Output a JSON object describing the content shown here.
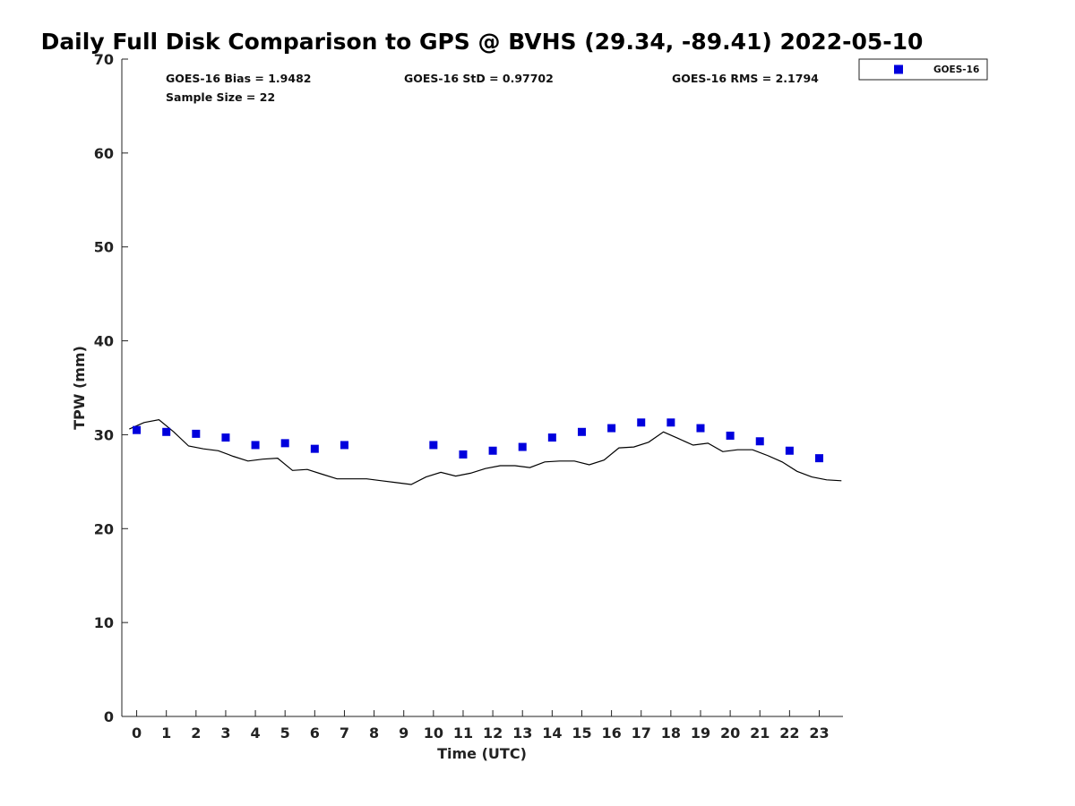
{
  "chart_data": {
    "type": "scatter",
    "title": "Daily Full Disk Comparison to GPS @ BVHS (29.34, -89.41) 2022-05-10",
    "xlabel": "Time (UTC)",
    "ylabel": "TPW (mm)",
    "xlim": [
      -0.5,
      23.8
    ],
    "ylim": [
      0,
      70
    ],
    "xticks": [
      0,
      1,
      2,
      3,
      4,
      5,
      6,
      7,
      8,
      9,
      10,
      11,
      12,
      13,
      14,
      15,
      16,
      17,
      18,
      19,
      20,
      21,
      22,
      23
    ],
    "xtick_labels": [
      "0",
      "1",
      "2",
      "3",
      "4",
      "5",
      "6",
      "7",
      "8",
      "9",
      "10",
      "11",
      "12",
      "13",
      "14",
      "15",
      "16",
      "17",
      "18",
      "19",
      "20",
      "21",
      "22",
      "23"
    ],
    "yticks": [
      0,
      10,
      20,
      30,
      40,
      50,
      60,
      70
    ],
    "ytick_labels": [
      "0",
      "10",
      "20",
      "30",
      "40",
      "50",
      "60",
      "70"
    ],
    "grid": false,
    "legend_position": "outside top-right",
    "stats": {
      "bias": "GOES-16 Bias = 1.9482",
      "std": "GOES-16 StD = 0.97702",
      "rms": "GOES-16 RMS = 2.1794",
      "sample_size": "Sample Size = 22"
    },
    "series": [
      {
        "name": "GOES-16",
        "type": "scatter",
        "marker": "square",
        "color": "#0000dd",
        "x": [
          0,
          1,
          2,
          3,
          4,
          5,
          6,
          7,
          10,
          11,
          12,
          13,
          14,
          15,
          16,
          17,
          18,
          19,
          20,
          21,
          22,
          23
        ],
        "y": [
          30.5,
          30.3,
          30.1,
          29.7,
          28.9,
          29.1,
          28.5,
          28.9,
          28.9,
          27.9,
          28.3,
          28.7,
          29.7,
          30.3,
          30.7,
          31.3,
          31.3,
          30.7,
          29.9,
          29.3,
          28.3,
          27.5
        ]
      },
      {
        "type": "line",
        "color": "#000000",
        "x": [
          -0.25,
          0.25,
          0.75,
          1.25,
          1.75,
          2.25,
          2.75,
          3.25,
          3.75,
          4.25,
          4.75,
          5.25,
          5.75,
          6.25,
          6.75,
          7.25,
          7.75,
          8.25,
          8.75,
          9.25,
          9.75,
          10.25,
          10.75,
          11.25,
          11.75,
          12.25,
          12.75,
          13.25,
          13.75,
          14.25,
          14.75,
          15.25,
          15.75,
          16.25,
          16.75,
          17.25,
          17.75,
          18.25,
          18.75,
          19.25,
          19.75,
          20.25,
          20.75,
          21.25,
          21.75,
          22.25,
          22.75,
          23.25,
          23.75
        ],
        "y": [
          30.6,
          31.3,
          31.6,
          30.3,
          28.8,
          28.5,
          28.3,
          27.7,
          27.2,
          27.4,
          27.5,
          26.2,
          26.3,
          25.8,
          25.3,
          25.3,
          25.3,
          25.1,
          24.9,
          24.7,
          25.5,
          26.0,
          25.6,
          25.9,
          26.4,
          26.7,
          26.7,
          26.5,
          27.1,
          27.2,
          27.2,
          26.8,
          27.3,
          28.6,
          28.7,
          29.2,
          30.3,
          29.6,
          28.9,
          29.1,
          28.2,
          28.4,
          28.4,
          27.8,
          27.1,
          26.1,
          25.5,
          25.2,
          25.1
        ]
      }
    ]
  }
}
